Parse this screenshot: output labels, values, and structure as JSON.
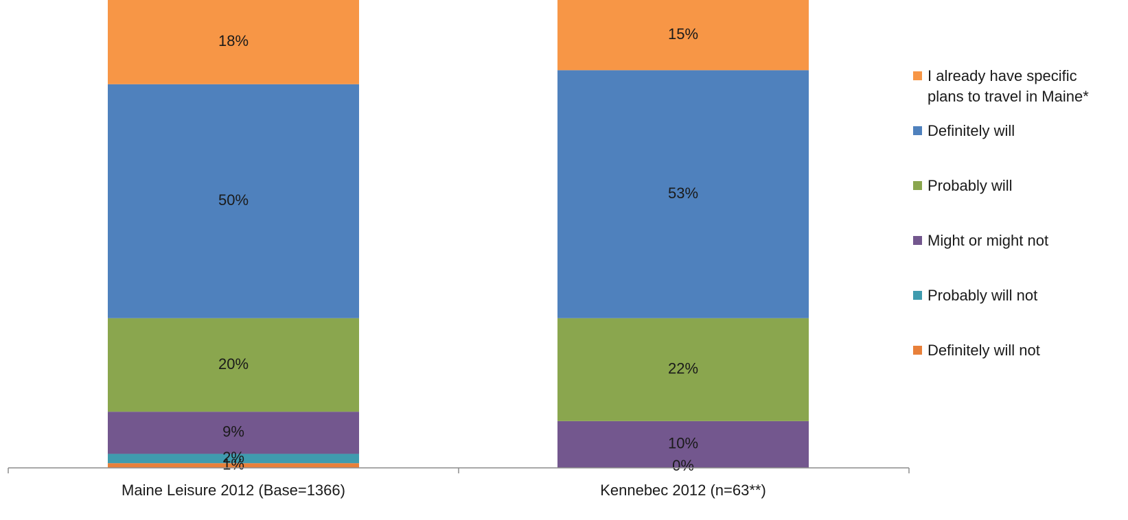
{
  "chart_data": {
    "type": "bar",
    "stacked": true,
    "orientation": "vertical",
    "categories": [
      "Maine Leisure 2012 (Base=1366)",
      "Kennebec 2012 (n=63**)"
    ],
    "series": [
      {
        "name": "Definitely will not",
        "color": "#e8803a",
        "values": [
          1,
          0
        ],
        "labels": [
          "1%",
          "0%"
        ]
      },
      {
        "name": "Probably will not",
        "color": "#3f9bae",
        "values": [
          2,
          0
        ],
        "labels": [
          "2%",
          ""
        ]
      },
      {
        "name": "Might or might not",
        "color": "#73578e",
        "values": [
          9,
          10
        ],
        "labels": [
          "9%",
          "10%"
        ]
      },
      {
        "name": "Probably will",
        "color": "#8aa64e",
        "values": [
          20,
          22
        ],
        "labels": [
          "20%",
          "22%"
        ]
      },
      {
        "name": "Definitely will",
        "color": "#4f81bd",
        "values": [
          50,
          53
        ],
        "labels": [
          "50%",
          "53%"
        ]
      },
      {
        "name": "I already have specific\nplans to travel in Maine*",
        "color": "#f79646",
        "values": [
          18,
          15
        ],
        "labels": [
          "18%",
          "15%"
        ]
      }
    ],
    "ylim": [
      0,
      100
    ],
    "grid": false,
    "legend_position": "right"
  }
}
